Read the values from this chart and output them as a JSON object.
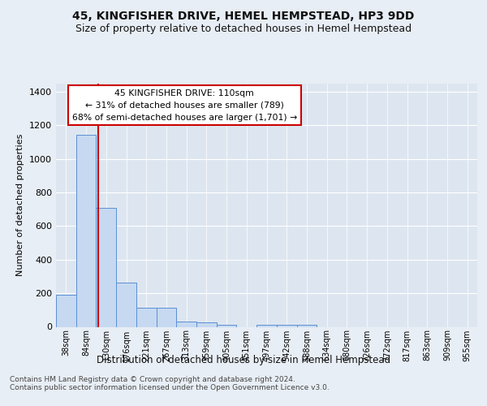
{
  "title": "45, KINGFISHER DRIVE, HEMEL HEMPSTEAD, HP3 9DD",
  "subtitle": "Size of property relative to detached houses in Hemel Hempstead",
  "xlabel": "Distribution of detached houses by size in Hemel Hempstead",
  "ylabel": "Number of detached properties",
  "categories": [
    "38sqm",
    "84sqm",
    "130sqm",
    "176sqm",
    "221sqm",
    "267sqm",
    "313sqm",
    "359sqm",
    "405sqm",
    "451sqm",
    "497sqm",
    "542sqm",
    "588sqm",
    "634sqm",
    "680sqm",
    "726sqm",
    "772sqm",
    "817sqm",
    "863sqm",
    "909sqm",
    "955sqm"
  ],
  "values": [
    190,
    1145,
    710,
    265,
    115,
    115,
    30,
    28,
    14,
    0,
    14,
    14,
    14,
    0,
    0,
    0,
    0,
    0,
    0,
    0,
    0
  ],
  "bar_color": "#c6d9f1",
  "bar_edge_color": "#5b8fd4",
  "ylim": [
    0,
    1450
  ],
  "yticks": [
    0,
    200,
    400,
    600,
    800,
    1000,
    1200,
    1400
  ],
  "red_line_x": 1.62,
  "annotation_text": "45 KINGFISHER DRIVE: 110sqm\n← 31% of detached houses are smaller (789)\n68% of semi-detached houses are larger (1,701) →",
  "annotation_box_color": "#ffffff",
  "annotation_box_edge": "#cc0000",
  "footer_text": "Contains HM Land Registry data © Crown copyright and database right 2024.\nContains public sector information licensed under the Open Government Licence v3.0.",
  "background_color": "#e8eef5",
  "plot_bg_color": "#dde6f0",
  "grid_color": "#ffffff",
  "title_fontsize": 10,
  "subtitle_fontsize": 9,
  "ylabel_fontsize": 8,
  "xlabel_fontsize": 8.5,
  "tick_fontsize": 8,
  "xtick_fontsize": 7,
  "annotation_fontsize": 7.8,
  "footer_fontsize": 6.5
}
